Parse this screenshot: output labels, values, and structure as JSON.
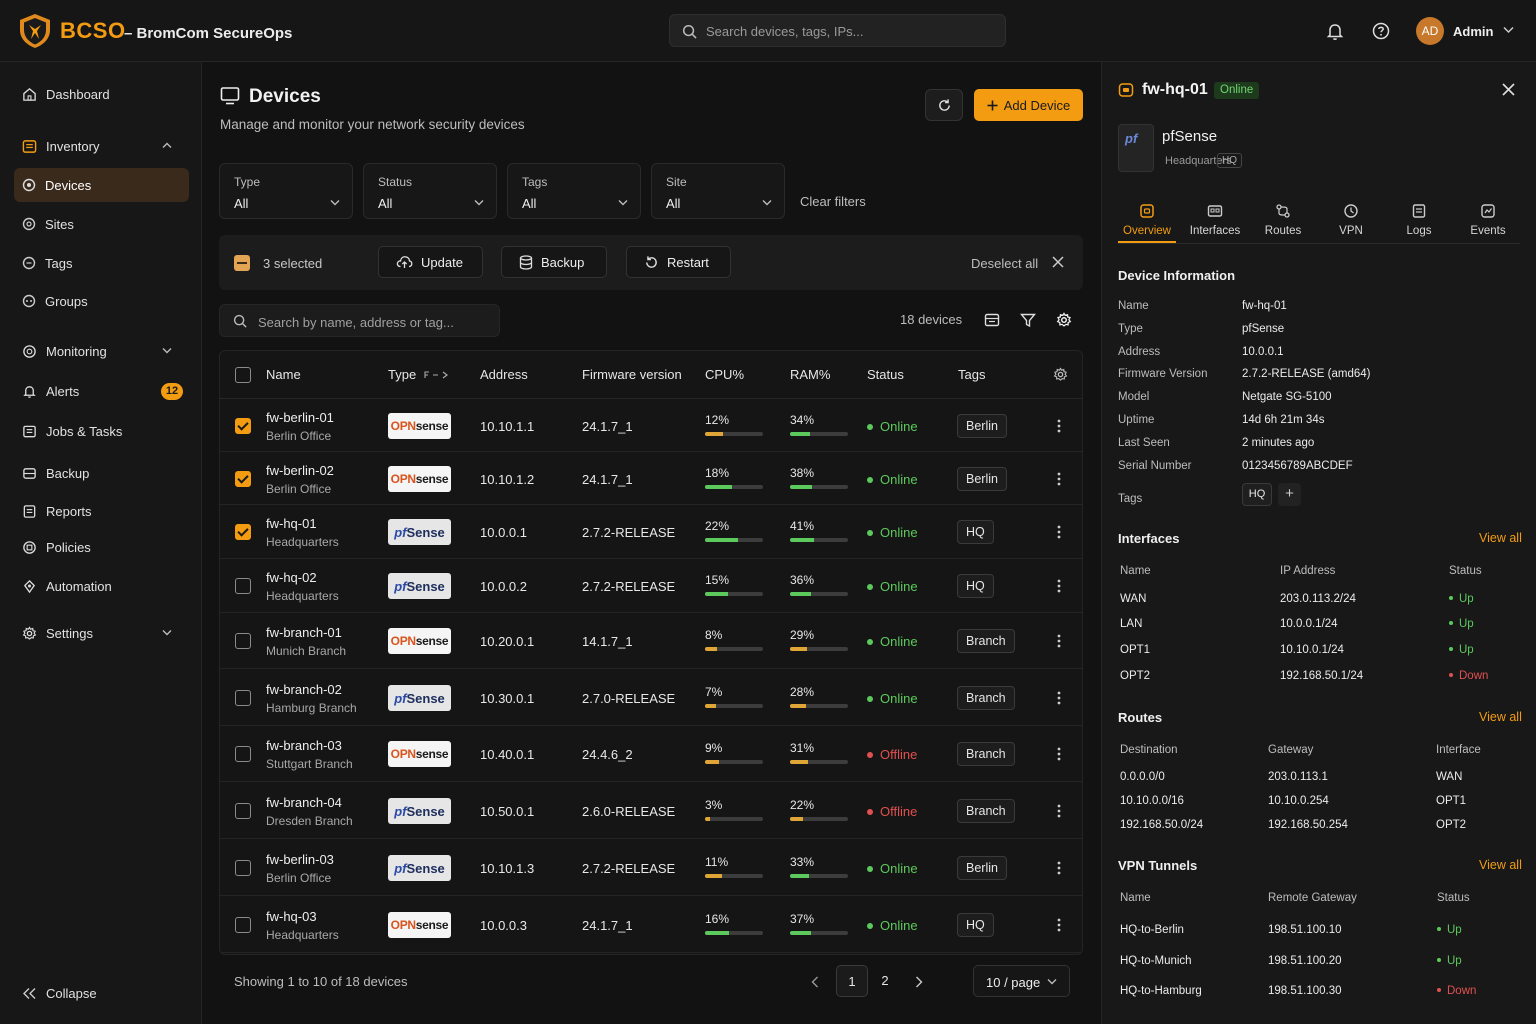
{
  "brand": {
    "short": "BCSO",
    "full": "– BromCom SecureOps"
  },
  "top_search": {
    "placeholder": "Search devices, tags, IPs..."
  },
  "user": {
    "initials": "AD",
    "name": "Admin"
  },
  "sidebar": {
    "items": [
      {
        "label": "Dashboard"
      },
      {
        "label": "Inventory"
      },
      {
        "label": "Devices"
      },
      {
        "label": "Sites"
      },
      {
        "label": "Tags"
      },
      {
        "label": "Groups"
      },
      {
        "label": "Monitoring"
      },
      {
        "label": "Alerts",
        "badge": "12"
      },
      {
        "label": "Jobs & Tasks"
      },
      {
        "label": "Backup"
      },
      {
        "label": "Reports"
      },
      {
        "label": "Policies"
      },
      {
        "label": "Automation"
      },
      {
        "label": "Settings"
      }
    ],
    "collapse": "Collapse"
  },
  "page": {
    "title": "Devices",
    "subtitle": "Manage and monitor your network security devices",
    "add_label": "Add Device"
  },
  "filters": [
    {
      "label": "Type",
      "value": "All"
    },
    {
      "label": "Status",
      "value": "All"
    },
    {
      "label": "Tags",
      "value": "All"
    },
    {
      "label": "Site",
      "value": "All"
    }
  ],
  "clear_filters": "Clear filters",
  "selection": {
    "text": "3 selected",
    "update": "Update",
    "backup": "Backup",
    "restart": "Restart",
    "deselect": "Deselect all"
  },
  "table_search": {
    "placeholder": "Search by name, address or tag..."
  },
  "device_count": "18 devices",
  "columns": {
    "name": "Name",
    "type": "Type",
    "address": "Address",
    "firmware": "Firmware version",
    "cpu": "CPU%",
    "ram": "RAM%",
    "status": "Status",
    "tags": "Tags"
  },
  "rows": [
    {
      "name": "fw-berlin-01",
      "loc": "Berlin Office",
      "type": "opn",
      "address": "10.10.1.1",
      "firmware": "24.1.7_1",
      "cpu": "12%",
      "cpu_v": 12,
      "ram": "34%",
      "ram_v": 34,
      "status": "Online",
      "tag": "Berlin",
      "checked": true
    },
    {
      "name": "fw-berlin-02",
      "loc": "Berlin Office",
      "type": "opn",
      "address": "10.10.1.2",
      "firmware": "24.1.7_1",
      "cpu": "18%",
      "cpu_v": 18,
      "ram": "38%",
      "ram_v": 38,
      "status": "Online",
      "tag": "Berlin",
      "checked": true
    },
    {
      "name": "fw-hq-01",
      "loc": "Headquarters",
      "type": "pf",
      "address": "10.0.0.1",
      "firmware": "2.7.2-RELEASE",
      "cpu": "22%",
      "cpu_v": 22,
      "ram": "41%",
      "ram_v": 41,
      "status": "Online",
      "tag": "HQ",
      "checked": true
    },
    {
      "name": "fw-hq-02",
      "loc": "Headquarters",
      "type": "pf",
      "address": "10.0.0.2",
      "firmware": "2.7.2-RELEASE",
      "cpu": "15%",
      "cpu_v": 15,
      "ram": "36%",
      "ram_v": 36,
      "status": "Online",
      "tag": "HQ",
      "checked": false
    },
    {
      "name": "fw-branch-01",
      "loc": "Munich Branch",
      "type": "opn",
      "address": "10.20.0.1",
      "firmware": "14.1.7_1",
      "cpu": "8%",
      "cpu_v": 8,
      "ram": "29%",
      "ram_v": 29,
      "status": "Online",
      "tag": "Branch",
      "checked": false
    },
    {
      "name": "fw-branch-02",
      "loc": "Hamburg Branch",
      "type": "pf",
      "address": "10.30.0.1",
      "firmware": "2.7.0-RELEASE",
      "cpu": "7%",
      "cpu_v": 7,
      "ram": "28%",
      "ram_v": 28,
      "status": "Online",
      "tag": "Branch",
      "checked": false
    },
    {
      "name": "fw-branch-03",
      "loc": "Stuttgart Branch",
      "type": "opn",
      "address": "10.40.0.1",
      "firmware": "24.4.6_2",
      "cpu": "9%",
      "cpu_v": 9,
      "ram": "31%",
      "ram_v": 31,
      "status": "Offline",
      "tag": "Branch",
      "checked": false
    },
    {
      "name": "fw-branch-04",
      "loc": "Dresden Branch",
      "type": "pf",
      "address": "10.50.0.1",
      "firmware": "2.6.0-RELEASE",
      "cpu": "3%",
      "cpu_v": 3,
      "ram": "22%",
      "ram_v": 22,
      "status": "Offline",
      "tag": "Branch",
      "checked": false
    },
    {
      "name": "fw-berlin-03",
      "loc": "Berlin Office",
      "type": "pf",
      "address": "10.10.1.3",
      "firmware": "2.7.2-RELEASE",
      "cpu": "11%",
      "cpu_v": 11,
      "ram": "33%",
      "ram_v": 33,
      "status": "Online",
      "tag": "Berlin",
      "checked": false
    },
    {
      "name": "fw-hq-03",
      "loc": "Headquarters",
      "type": "opn",
      "address": "10.0.0.3",
      "firmware": "24.1.7_1",
      "cpu": "16%",
      "cpu_v": 16,
      "ram": "37%",
      "ram_v": 37,
      "status": "Online",
      "tag": "HQ",
      "checked": false
    }
  ],
  "logos": {
    "opn_a": "OPN",
    "opn_b": "sense",
    "pf_a": "pf",
    "pf_b": "Sense"
  },
  "footer": {
    "showing": "Showing 1 to 10 of 18 devices",
    "page1": "1",
    "page2": "2",
    "per_page": "10 / page"
  },
  "panel": {
    "title": "fw-hq-01",
    "status": "Online",
    "device_name": "pfSense",
    "device_sub": "Headquarters",
    "device_tag": "HQ",
    "tabs": [
      "Overview",
      "Interfaces",
      "Routes",
      "VPN",
      "Logs",
      "Events"
    ],
    "info_title": "Device Information",
    "info": [
      {
        "k": "Name",
        "v": "fw-hq-01"
      },
      {
        "k": "Type",
        "v": "pfSense"
      },
      {
        "k": "Address",
        "v": "10.0.0.1"
      },
      {
        "k": "Firmware Version",
        "v": "2.7.2-RELEASE (amd64)"
      },
      {
        "k": "Model",
        "v": "Netgate SG-5100"
      },
      {
        "k": "Uptime",
        "v": "14d 6h 21m 34s"
      },
      {
        "k": "Last Seen",
        "v": "2 minutes ago"
      },
      {
        "k": "Serial Number",
        "v": "0123456789ABCDEF"
      }
    ],
    "tags_label": "Tags",
    "tag": "HQ",
    "view_all": "View all",
    "interfaces_title": "Interfaces",
    "if_cols": [
      "Name",
      "IP Address",
      "Status"
    ],
    "interfaces": [
      {
        "name": "WAN",
        "ip": "203.0.113.2/24",
        "status": "Up"
      },
      {
        "name": "LAN",
        "ip": "10.0.0.1/24",
        "status": "Up"
      },
      {
        "name": "OPT1",
        "ip": "10.10.0.1/24",
        "status": "Up"
      },
      {
        "name": "OPT2",
        "ip": "192.168.50.1/24",
        "status": "Down"
      }
    ],
    "routes_title": "Routes",
    "rt_cols": [
      "Destination",
      "Gateway",
      "Interface"
    ],
    "routes": [
      {
        "dest": "0.0.0.0/0",
        "gw": "203.0.113.1",
        "if": "WAN"
      },
      {
        "dest": "10.10.0.0/16",
        "gw": "10.10.0.254",
        "if": "OPT1"
      },
      {
        "dest": "192.168.50.0/24",
        "gw": "192.168.50.254",
        "if": "OPT2"
      }
    ],
    "vpn_title": "VPN Tunnels",
    "vpn_cols": [
      "Name",
      "Remote Gateway",
      "Status"
    ],
    "vpn": [
      {
        "name": "HQ-to-Berlin",
        "gw": "198.51.100.10",
        "status": "Up"
      },
      {
        "name": "HQ-to-Munich",
        "gw": "198.51.100.20",
        "status": "Up"
      },
      {
        "name": "HQ-to-Hamburg",
        "gw": "198.51.100.30",
        "status": "Down"
      }
    ]
  },
  "colors": {
    "accent": "#f39c12",
    "online": "#5cc95c",
    "offline": "#e05050",
    "bar_green": "#5cc95c",
    "bar_amber": "#e0a537"
  }
}
